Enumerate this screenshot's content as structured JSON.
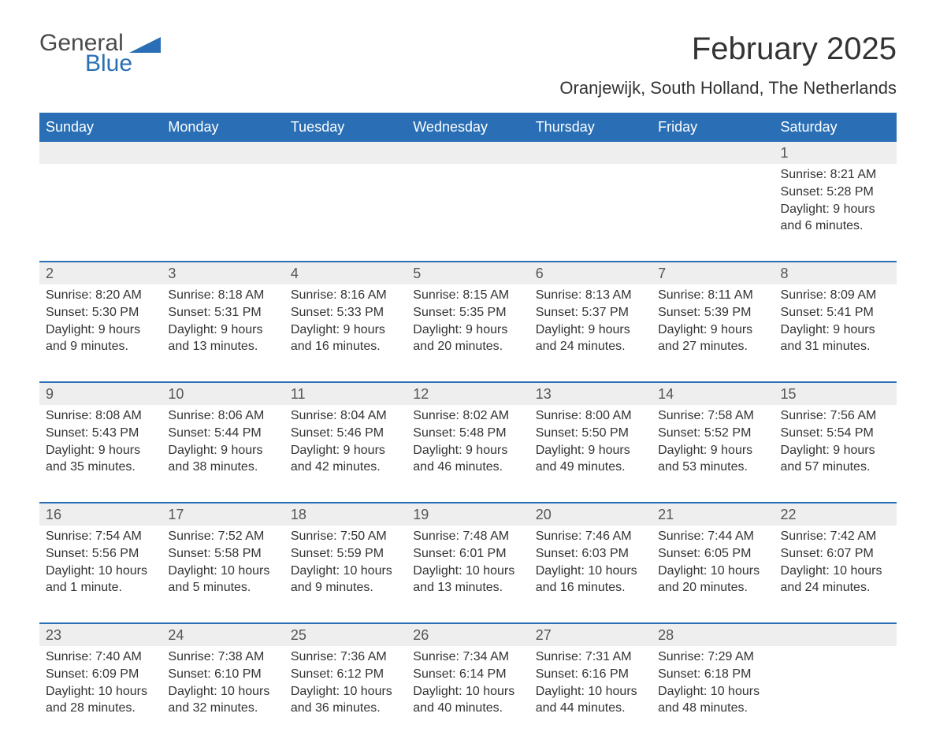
{
  "brand": {
    "word1": "General",
    "word2": "Blue"
  },
  "header": {
    "month_title": "February 2025",
    "location": "Oranjewijk, South Holland, The Netherlands"
  },
  "colors": {
    "accent": "#2a6fb5",
    "header_gray": "#eeeeee",
    "text_dark": "#333333",
    "background": "#ffffff"
  },
  "days_of_week": [
    "Sunday",
    "Monday",
    "Tuesday",
    "Wednesday",
    "Thursday",
    "Friday",
    "Saturday"
  ],
  "weeks": [
    [
      {
        "day": "",
        "sunrise": "",
        "sunset": "",
        "daylight1": "",
        "daylight2": ""
      },
      {
        "day": "",
        "sunrise": "",
        "sunset": "",
        "daylight1": "",
        "daylight2": ""
      },
      {
        "day": "",
        "sunrise": "",
        "sunset": "",
        "daylight1": "",
        "daylight2": ""
      },
      {
        "day": "",
        "sunrise": "",
        "sunset": "",
        "daylight1": "",
        "daylight2": ""
      },
      {
        "day": "",
        "sunrise": "",
        "sunset": "",
        "daylight1": "",
        "daylight2": ""
      },
      {
        "day": "",
        "sunrise": "",
        "sunset": "",
        "daylight1": "",
        "daylight2": ""
      },
      {
        "day": "1",
        "sunrise": "Sunrise: 8:21 AM",
        "sunset": "Sunset: 5:28 PM",
        "daylight1": "Daylight: 9 hours",
        "daylight2": "and 6 minutes."
      }
    ],
    [
      {
        "day": "2",
        "sunrise": "Sunrise: 8:20 AM",
        "sunset": "Sunset: 5:30 PM",
        "daylight1": "Daylight: 9 hours",
        "daylight2": "and 9 minutes."
      },
      {
        "day": "3",
        "sunrise": "Sunrise: 8:18 AM",
        "sunset": "Sunset: 5:31 PM",
        "daylight1": "Daylight: 9 hours",
        "daylight2": "and 13 minutes."
      },
      {
        "day": "4",
        "sunrise": "Sunrise: 8:16 AM",
        "sunset": "Sunset: 5:33 PM",
        "daylight1": "Daylight: 9 hours",
        "daylight2": "and 16 minutes."
      },
      {
        "day": "5",
        "sunrise": "Sunrise: 8:15 AM",
        "sunset": "Sunset: 5:35 PM",
        "daylight1": "Daylight: 9 hours",
        "daylight2": "and 20 minutes."
      },
      {
        "day": "6",
        "sunrise": "Sunrise: 8:13 AM",
        "sunset": "Sunset: 5:37 PM",
        "daylight1": "Daylight: 9 hours",
        "daylight2": "and 24 minutes."
      },
      {
        "day": "7",
        "sunrise": "Sunrise: 8:11 AM",
        "sunset": "Sunset: 5:39 PM",
        "daylight1": "Daylight: 9 hours",
        "daylight2": "and 27 minutes."
      },
      {
        "day": "8",
        "sunrise": "Sunrise: 8:09 AM",
        "sunset": "Sunset: 5:41 PM",
        "daylight1": "Daylight: 9 hours",
        "daylight2": "and 31 minutes."
      }
    ],
    [
      {
        "day": "9",
        "sunrise": "Sunrise: 8:08 AM",
        "sunset": "Sunset: 5:43 PM",
        "daylight1": "Daylight: 9 hours",
        "daylight2": "and 35 minutes."
      },
      {
        "day": "10",
        "sunrise": "Sunrise: 8:06 AM",
        "sunset": "Sunset: 5:44 PM",
        "daylight1": "Daylight: 9 hours",
        "daylight2": "and 38 minutes."
      },
      {
        "day": "11",
        "sunrise": "Sunrise: 8:04 AM",
        "sunset": "Sunset: 5:46 PM",
        "daylight1": "Daylight: 9 hours",
        "daylight2": "and 42 minutes."
      },
      {
        "day": "12",
        "sunrise": "Sunrise: 8:02 AM",
        "sunset": "Sunset: 5:48 PM",
        "daylight1": "Daylight: 9 hours",
        "daylight2": "and 46 minutes."
      },
      {
        "day": "13",
        "sunrise": "Sunrise: 8:00 AM",
        "sunset": "Sunset: 5:50 PM",
        "daylight1": "Daylight: 9 hours",
        "daylight2": "and 49 minutes."
      },
      {
        "day": "14",
        "sunrise": "Sunrise: 7:58 AM",
        "sunset": "Sunset: 5:52 PM",
        "daylight1": "Daylight: 9 hours",
        "daylight2": "and 53 minutes."
      },
      {
        "day": "15",
        "sunrise": "Sunrise: 7:56 AM",
        "sunset": "Sunset: 5:54 PM",
        "daylight1": "Daylight: 9 hours",
        "daylight2": "and 57 minutes."
      }
    ],
    [
      {
        "day": "16",
        "sunrise": "Sunrise: 7:54 AM",
        "sunset": "Sunset: 5:56 PM",
        "daylight1": "Daylight: 10 hours",
        "daylight2": "and 1 minute."
      },
      {
        "day": "17",
        "sunrise": "Sunrise: 7:52 AM",
        "sunset": "Sunset: 5:58 PM",
        "daylight1": "Daylight: 10 hours",
        "daylight2": "and 5 minutes."
      },
      {
        "day": "18",
        "sunrise": "Sunrise: 7:50 AM",
        "sunset": "Sunset: 5:59 PM",
        "daylight1": "Daylight: 10 hours",
        "daylight2": "and 9 minutes."
      },
      {
        "day": "19",
        "sunrise": "Sunrise: 7:48 AM",
        "sunset": "Sunset: 6:01 PM",
        "daylight1": "Daylight: 10 hours",
        "daylight2": "and 13 minutes."
      },
      {
        "day": "20",
        "sunrise": "Sunrise: 7:46 AM",
        "sunset": "Sunset: 6:03 PM",
        "daylight1": "Daylight: 10 hours",
        "daylight2": "and 16 minutes."
      },
      {
        "day": "21",
        "sunrise": "Sunrise: 7:44 AM",
        "sunset": "Sunset: 6:05 PM",
        "daylight1": "Daylight: 10 hours",
        "daylight2": "and 20 minutes."
      },
      {
        "day": "22",
        "sunrise": "Sunrise: 7:42 AM",
        "sunset": "Sunset: 6:07 PM",
        "daylight1": "Daylight: 10 hours",
        "daylight2": "and 24 minutes."
      }
    ],
    [
      {
        "day": "23",
        "sunrise": "Sunrise: 7:40 AM",
        "sunset": "Sunset: 6:09 PM",
        "daylight1": "Daylight: 10 hours",
        "daylight2": "and 28 minutes."
      },
      {
        "day": "24",
        "sunrise": "Sunrise: 7:38 AM",
        "sunset": "Sunset: 6:10 PM",
        "daylight1": "Daylight: 10 hours",
        "daylight2": "and 32 minutes."
      },
      {
        "day": "25",
        "sunrise": "Sunrise: 7:36 AM",
        "sunset": "Sunset: 6:12 PM",
        "daylight1": "Daylight: 10 hours",
        "daylight2": "and 36 minutes."
      },
      {
        "day": "26",
        "sunrise": "Sunrise: 7:34 AM",
        "sunset": "Sunset: 6:14 PM",
        "daylight1": "Daylight: 10 hours",
        "daylight2": "and 40 minutes."
      },
      {
        "day": "27",
        "sunrise": "Sunrise: 7:31 AM",
        "sunset": "Sunset: 6:16 PM",
        "daylight1": "Daylight: 10 hours",
        "daylight2": "and 44 minutes."
      },
      {
        "day": "28",
        "sunrise": "Sunrise: 7:29 AM",
        "sunset": "Sunset: 6:18 PM",
        "daylight1": "Daylight: 10 hours",
        "daylight2": "and 48 minutes."
      },
      {
        "day": "",
        "sunrise": "",
        "sunset": "",
        "daylight1": "",
        "daylight2": ""
      }
    ]
  ]
}
